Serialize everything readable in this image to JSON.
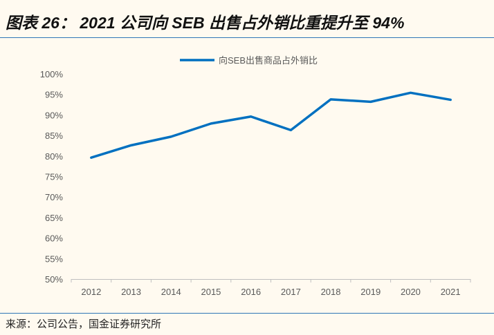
{
  "title": "图表 26： 2021 公司向 SEB 出售占外销比重提升至 94%",
  "source": "来源：公司公告，国金证券研究所",
  "colors": {
    "line": "#0070C0",
    "rule": "#2E75B6",
    "background": "#FFFAF0"
  },
  "chart_data": {
    "type": "line",
    "title": "",
    "xlabel": "",
    "ylabel": "",
    "categories": [
      "2012",
      "2013",
      "2014",
      "2015",
      "2016",
      "2017",
      "2018",
      "2019",
      "2020",
      "2021"
    ],
    "series": [
      {
        "name": "向SEB出售商品占外销比",
        "values": [
          79.6,
          82.6,
          84.7,
          87.9,
          89.6,
          86.3,
          93.8,
          93.2,
          95.4,
          93.7
        ]
      }
    ],
    "ylim": [
      50,
      100
    ],
    "yticks": [
      "50%",
      "55%",
      "60%",
      "65%",
      "70%",
      "75%",
      "80%",
      "85%",
      "90%",
      "95%",
      "100%"
    ],
    "grid": false,
    "legend": "top-center"
  }
}
